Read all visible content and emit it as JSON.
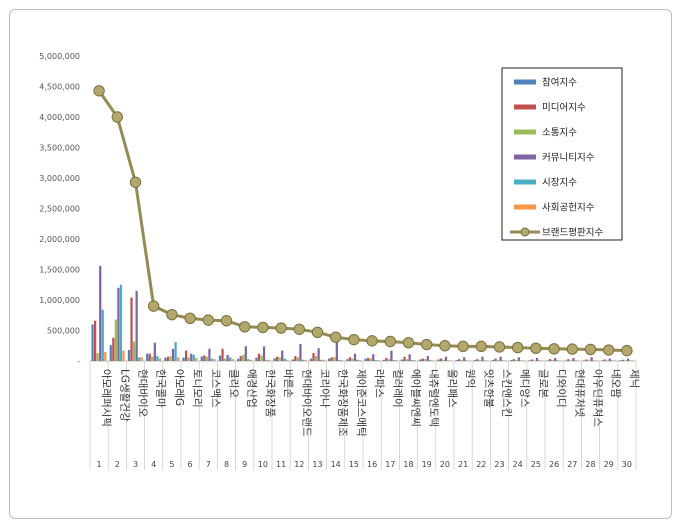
{
  "chart_data": {
    "type": "bar",
    "title": "",
    "xlabel": "",
    "ylabel": "",
    "ylim": [
      0,
      5000000
    ],
    "y_ticks": [
      "-",
      "500,000",
      "1,000,000",
      "1,500,000",
      "2,000,000",
      "2,500,000",
      "3,000,000",
      "3,500,000",
      "4,000,000",
      "4,500,000",
      "5,000,000"
    ],
    "grid": false,
    "legend_position": "top-right",
    "ranks": [
      "1",
      "2",
      "3",
      "4",
      "5",
      "6",
      "7",
      "8",
      "9",
      "10",
      "11",
      "12",
      "13",
      "14",
      "15",
      "16",
      "17",
      "18",
      "19",
      "20",
      "21",
      "22",
      "23",
      "24",
      "25",
      "26",
      "27",
      "28",
      "29",
      "30"
    ],
    "categories": [
      "아모레퍼시픽",
      "LG생활건강",
      "현대바이오",
      "한국콜마",
      "아모레G",
      "토니모리",
      "코스맥스",
      "클리오",
      "애경산업",
      "한국화장품",
      "바른손",
      "현대바이오랜드",
      "코리아나",
      "한국화장품제조",
      "제이준코스메틱",
      "라파스",
      "컬러레이",
      "에이블씨엔씨",
      "내츄럴엔도텍",
      "올리패스",
      "원익",
      "잇츠한불",
      "스킨앤스킨",
      "메디앙스",
      "글로본",
      "디와이디",
      "현대퓨처넷",
      "아우딘퓨쳐스",
      "네오팜",
      "제닉"
    ],
    "series": [
      {
        "name": "참여지수",
        "color": "#4f81bd",
        "kind": "bar",
        "values": [
          600000,
          260000,
          180000,
          120000,
          55000,
          55000,
          75000,
          90000,
          35000,
          55000,
          45000,
          25000,
          40000,
          40000,
          30000,
          40000,
          20000,
          25000,
          25000,
          25000,
          15000,
          15000,
          15000,
          15000,
          10000,
          10000,
          10000,
          10000,
          10000,
          10000
        ]
      },
      {
        "name": "미디어지수",
        "color": "#c0504d",
        "kind": "bar",
        "values": [
          660000,
          380000,
          1040000,
          120000,
          70000,
          170000,
          90000,
          200000,
          80000,
          120000,
          70000,
          80000,
          130000,
          60000,
          60000,
          50000,
          50000,
          70000,
          40000,
          40000,
          30000,
          30000,
          40000,
          30000,
          25000,
          30000,
          30000,
          25000,
          25000,
          20000
        ]
      },
      {
        "name": "소통지수",
        "color": "#9bbb59",
        "kind": "bar",
        "values": [
          130000,
          680000,
          320000,
          70000,
          80000,
          60000,
          70000,
          40000,
          100000,
          90000,
          60000,
          60000,
          80000,
          60000,
          40000,
          40000,
          30000,
          30000,
          30000,
          20000,
          15000,
          15000,
          15000,
          15000,
          10000,
          15000,
          10000,
          10000,
          10000,
          10000
        ]
      },
      {
        "name": "커뮤니티지수",
        "color": "#8064a2",
        "kind": "bar",
        "values": [
          1560000,
          1200000,
          1150000,
          300000,
          200000,
          120000,
          200000,
          100000,
          240000,
          240000,
          170000,
          280000,
          210000,
          370000,
          120000,
          110000,
          170000,
          110000,
          80000,
          70000,
          60000,
          70000,
          70000,
          60000,
          50000,
          50000,
          50000,
          60000,
          40000,
          40000
        ]
      },
      {
        "name": "시장지수",
        "color": "#4bacc6",
        "kind": "bar",
        "values": [
          840000,
          1250000,
          60000,
          80000,
          310000,
          100000,
          40000,
          60000,
          30000,
          20000,
          40000,
          20000,
          20000,
          20000,
          20000,
          15000,
          15000,
          15000,
          15000,
          10000,
          10000,
          10000,
          10000,
          10000,
          10000,
          10000,
          10000,
          10000,
          10000,
          10000
        ]
      },
      {
        "name": "사회공헌지수",
        "color": "#f79646",
        "kind": "bar",
        "values": [
          150000,
          170000,
          60000,
          40000,
          60000,
          50000,
          30000,
          30000,
          20000,
          20000,
          20000,
          20000,
          20000,
          15000,
          15000,
          15000,
          15000,
          15000,
          10000,
          10000,
          10000,
          10000,
          10000,
          10000,
          10000,
          10000,
          10000,
          10000,
          10000,
          10000
        ]
      },
      {
        "name": "브랜드평판지수",
        "color": "#948a54",
        "kind": "line",
        "values": [
          4430000,
          4000000,
          2930000,
          900000,
          760000,
          700000,
          670000,
          660000,
          560000,
          550000,
          540000,
          520000,
          470000,
          390000,
          350000,
          330000,
          320000,
          300000,
          270000,
          250000,
          240000,
          240000,
          230000,
          220000,
          210000,
          200000,
          195000,
          190000,
          180000,
          170000
        ]
      }
    ]
  }
}
